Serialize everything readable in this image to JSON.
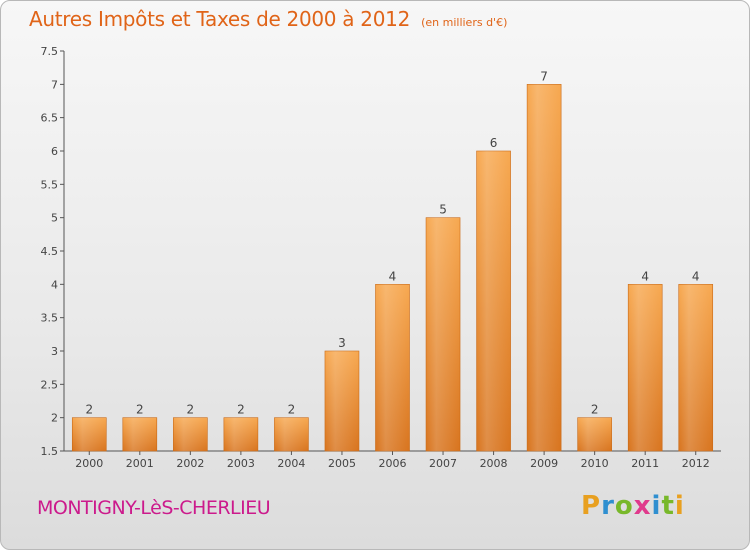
{
  "chart_data": {
    "type": "bar",
    "title": "Autres Impôts et Taxes de 2000 à 2012",
    "subtitle": "(en milliers d'€)",
    "categories": [
      "2000",
      "2001",
      "2002",
      "2003",
      "2004",
      "2005",
      "2006",
      "2007",
      "2008",
      "2009",
      "2010",
      "2011",
      "2012"
    ],
    "values": [
      2,
      2,
      2,
      2,
      2,
      3,
      4,
      5,
      6,
      7,
      2,
      4,
      4
    ],
    "value_labels": [
      "2",
      "2",
      "2",
      "2",
      "2",
      "3",
      "4",
      "5",
      "6",
      "7",
      "2",
      "4",
      "4"
    ],
    "ylim": [
      1.5,
      7.5
    ],
    "yticks": [
      "1.5",
      "2",
      "2.5",
      "3",
      "3.5",
      "4",
      "4.5",
      "5",
      "5.5",
      "6",
      "6.5",
      "7",
      "7.5"
    ],
    "grid": false,
    "bar_color": "#f09a40",
    "bar_color_dark": "#d8741e",
    "xlabel": "",
    "ylabel": ""
  },
  "footer": {
    "commune": "MONTIGNY-LèS-CHERLIEU",
    "logo_letters": [
      "P",
      "r",
      "o",
      "x",
      "i",
      "t",
      "i"
    ],
    "logo_colors": [
      "#e8a020",
      "#2f8fd0",
      "#78b82a",
      "#e03a8c",
      "#2f8fd0",
      "#78b82a",
      "#e8a020"
    ]
  }
}
